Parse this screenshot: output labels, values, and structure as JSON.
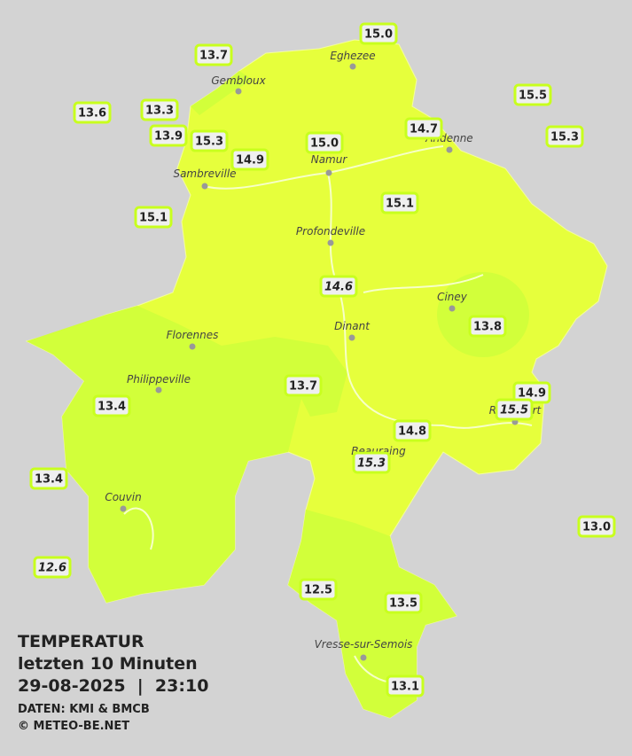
{
  "title": "TEMPERATUR",
  "subtitle": "letzten 10 Minuten",
  "timestamp": "29-08-2025  |  23:10",
  "credits": [
    "DATEN: KMI & BMCB",
    "© METEO-BE.NET"
  ],
  "cities": [
    "Eghezee",
    "Gembloux",
    "Andenne",
    "Namur",
    "Sambreville",
    "Profondeville",
    "Ciney",
    "Florennes",
    "Dinant",
    "Philippeville",
    "Rochefort",
    "Beauraing",
    "Couvin",
    "Vresse-sur-Semois"
  ],
  "stations": [
    {
      "value": "15.0"
    },
    {
      "value": "13.7"
    },
    {
      "value": "15.5"
    },
    {
      "value": "13.6"
    },
    {
      "value": "13.3"
    },
    {
      "value": "13.9"
    },
    {
      "value": "15.3"
    },
    {
      "value": "14.9"
    },
    {
      "value": "15.0"
    },
    {
      "value": "14.7"
    },
    {
      "value": "15.3"
    },
    {
      "value": "15.1"
    },
    {
      "value": "15.1"
    },
    {
      "value": "14.6",
      "italic": true
    },
    {
      "value": "13.8"
    },
    {
      "value": "13.7"
    },
    {
      "value": "14.9"
    },
    {
      "value": "13.4"
    },
    {
      "value": "15.5",
      "italic": true
    },
    {
      "value": "14.8"
    },
    {
      "value": "15.3",
      "italic": true
    },
    {
      "value": "13.4"
    },
    {
      "value": "13.0"
    },
    {
      "value": "12.6",
      "italic": true
    },
    {
      "value": "12.5"
    },
    {
      "value": "13.5"
    },
    {
      "value": "13.1"
    }
  ]
}
